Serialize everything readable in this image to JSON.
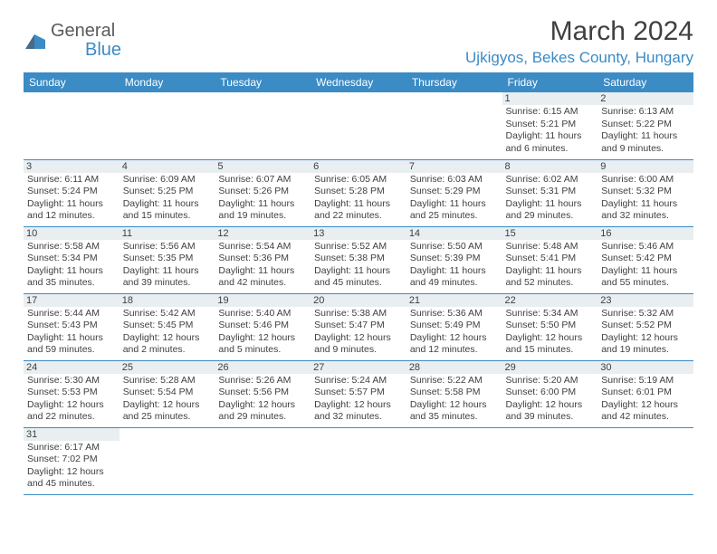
{
  "logo": {
    "primary": "General",
    "accent": "Blue"
  },
  "title": "March 2024",
  "location": "Ujkigyos, Bekes County, Hungary",
  "colors": {
    "header_bg": "#3b8bc4",
    "header_text": "#ffffff",
    "daynum_bg": "#e9eef1",
    "text": "#404040",
    "border": "#3b8bc4",
    "logo_accent": "#3b8bc4",
    "logo_text": "#5a5a5a"
  },
  "day_headers": [
    "Sunday",
    "Monday",
    "Tuesday",
    "Wednesday",
    "Thursday",
    "Friday",
    "Saturday"
  ],
  "weeks": [
    [
      null,
      null,
      null,
      null,
      null,
      {
        "n": "1",
        "sr": "6:15 AM",
        "ss": "5:21 PM",
        "dl": "11 hours and 6 minutes."
      },
      {
        "n": "2",
        "sr": "6:13 AM",
        "ss": "5:22 PM",
        "dl": "11 hours and 9 minutes."
      }
    ],
    [
      {
        "n": "3",
        "sr": "6:11 AM",
        "ss": "5:24 PM",
        "dl": "11 hours and 12 minutes."
      },
      {
        "n": "4",
        "sr": "6:09 AM",
        "ss": "5:25 PM",
        "dl": "11 hours and 15 minutes."
      },
      {
        "n": "5",
        "sr": "6:07 AM",
        "ss": "5:26 PM",
        "dl": "11 hours and 19 minutes."
      },
      {
        "n": "6",
        "sr": "6:05 AM",
        "ss": "5:28 PM",
        "dl": "11 hours and 22 minutes."
      },
      {
        "n": "7",
        "sr": "6:03 AM",
        "ss": "5:29 PM",
        "dl": "11 hours and 25 minutes."
      },
      {
        "n": "8",
        "sr": "6:02 AM",
        "ss": "5:31 PM",
        "dl": "11 hours and 29 minutes."
      },
      {
        "n": "9",
        "sr": "6:00 AM",
        "ss": "5:32 PM",
        "dl": "11 hours and 32 minutes."
      }
    ],
    [
      {
        "n": "10",
        "sr": "5:58 AM",
        "ss": "5:34 PM",
        "dl": "11 hours and 35 minutes."
      },
      {
        "n": "11",
        "sr": "5:56 AM",
        "ss": "5:35 PM",
        "dl": "11 hours and 39 minutes."
      },
      {
        "n": "12",
        "sr": "5:54 AM",
        "ss": "5:36 PM",
        "dl": "11 hours and 42 minutes."
      },
      {
        "n": "13",
        "sr": "5:52 AM",
        "ss": "5:38 PM",
        "dl": "11 hours and 45 minutes."
      },
      {
        "n": "14",
        "sr": "5:50 AM",
        "ss": "5:39 PM",
        "dl": "11 hours and 49 minutes."
      },
      {
        "n": "15",
        "sr": "5:48 AM",
        "ss": "5:41 PM",
        "dl": "11 hours and 52 minutes."
      },
      {
        "n": "16",
        "sr": "5:46 AM",
        "ss": "5:42 PM",
        "dl": "11 hours and 55 minutes."
      }
    ],
    [
      {
        "n": "17",
        "sr": "5:44 AM",
        "ss": "5:43 PM",
        "dl": "11 hours and 59 minutes."
      },
      {
        "n": "18",
        "sr": "5:42 AM",
        "ss": "5:45 PM",
        "dl": "12 hours and 2 minutes."
      },
      {
        "n": "19",
        "sr": "5:40 AM",
        "ss": "5:46 PM",
        "dl": "12 hours and 5 minutes."
      },
      {
        "n": "20",
        "sr": "5:38 AM",
        "ss": "5:47 PM",
        "dl": "12 hours and 9 minutes."
      },
      {
        "n": "21",
        "sr": "5:36 AM",
        "ss": "5:49 PM",
        "dl": "12 hours and 12 minutes."
      },
      {
        "n": "22",
        "sr": "5:34 AM",
        "ss": "5:50 PM",
        "dl": "12 hours and 15 minutes."
      },
      {
        "n": "23",
        "sr": "5:32 AM",
        "ss": "5:52 PM",
        "dl": "12 hours and 19 minutes."
      }
    ],
    [
      {
        "n": "24",
        "sr": "5:30 AM",
        "ss": "5:53 PM",
        "dl": "12 hours and 22 minutes."
      },
      {
        "n": "25",
        "sr": "5:28 AM",
        "ss": "5:54 PM",
        "dl": "12 hours and 25 minutes."
      },
      {
        "n": "26",
        "sr": "5:26 AM",
        "ss": "5:56 PM",
        "dl": "12 hours and 29 minutes."
      },
      {
        "n": "27",
        "sr": "5:24 AM",
        "ss": "5:57 PM",
        "dl": "12 hours and 32 minutes."
      },
      {
        "n": "28",
        "sr": "5:22 AM",
        "ss": "5:58 PM",
        "dl": "12 hours and 35 minutes."
      },
      {
        "n": "29",
        "sr": "5:20 AM",
        "ss": "6:00 PM",
        "dl": "12 hours and 39 minutes."
      },
      {
        "n": "30",
        "sr": "5:19 AM",
        "ss": "6:01 PM",
        "dl": "12 hours and 42 minutes."
      }
    ],
    [
      {
        "n": "31",
        "sr": "6:17 AM",
        "ss": "7:02 PM",
        "dl": "12 hours and 45 minutes."
      },
      null,
      null,
      null,
      null,
      null,
      null
    ]
  ],
  "labels": {
    "sunrise": "Sunrise:",
    "sunset": "Sunset:",
    "daylight": "Daylight:"
  }
}
